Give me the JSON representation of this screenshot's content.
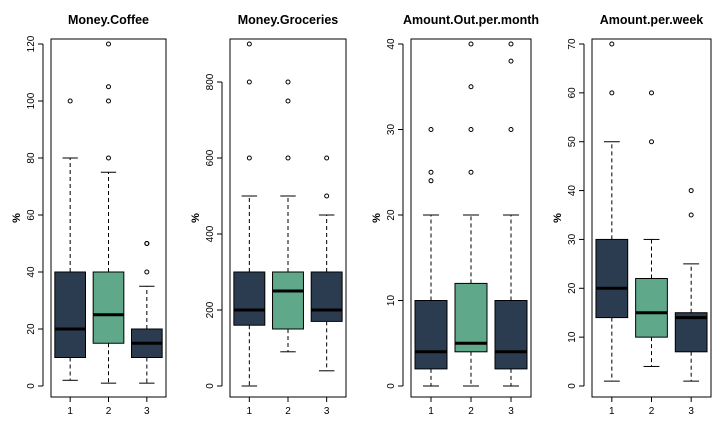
{
  "chart_data": [
    {
      "type": "boxplot",
      "title": "Money.Coffee",
      "ylabel": "%",
      "xlabel": "",
      "categories": [
        "1",
        "2",
        "3"
      ],
      "ylim": [
        0,
        120
      ],
      "yticks": [
        0,
        20,
        40,
        60,
        80,
        100,
        120
      ],
      "boxes": [
        {
          "group": "1",
          "min": 2,
          "q1": 10,
          "median": 20,
          "q3": 40,
          "max": 80,
          "outliers": [
            100
          ],
          "color": "#2b3c50"
        },
        {
          "group": "2",
          "min": 1,
          "q1": 15,
          "median": 25,
          "q3": 40,
          "max": 75,
          "outliers": [
            80,
            100,
            105,
            120
          ],
          "color": "#5fa98a"
        },
        {
          "group": "3",
          "min": 1,
          "q1": 10,
          "median": 15,
          "q3": 20,
          "max": 35,
          "outliers": [
            40,
            50,
            50
          ],
          "color": "#2b3c50"
        }
      ]
    },
    {
      "type": "boxplot",
      "title": "Money.Groceries",
      "ylabel": "%",
      "xlabel": "",
      "categories": [
        "1",
        "2",
        "3"
      ],
      "ylim": [
        0,
        900
      ],
      "yticks": [
        0,
        200,
        400,
        600,
        800
      ],
      "boxes": [
        {
          "group": "1",
          "min": 0,
          "q1": 160,
          "median": 200,
          "q3": 300,
          "max": 500,
          "outliers": [
            600,
            800,
            900
          ],
          "color": "#2b3c50"
        },
        {
          "group": "2",
          "min": 90,
          "q1": 150,
          "median": 250,
          "q3": 300,
          "max": 500,
          "outliers": [
            600,
            750,
            800
          ],
          "color": "#5fa98a"
        },
        {
          "group": "3",
          "min": 40,
          "q1": 170,
          "median": 200,
          "q3": 300,
          "max": 450,
          "outliers": [
            500,
            600
          ],
          "color": "#2b3c50"
        }
      ]
    },
    {
      "type": "boxplot",
      "title": "Amount.Out.per.month",
      "ylabel": "%",
      "xlabel": "",
      "categories": [
        "1",
        "2",
        "3"
      ],
      "ylim": [
        0,
        40
      ],
      "yticks": [
        0,
        10,
        20,
        30,
        40
      ],
      "boxes": [
        {
          "group": "1",
          "min": 0,
          "q1": 2,
          "median": 4,
          "q3": 10,
          "max": 20,
          "outliers": [
            24,
            25,
            30
          ],
          "color": "#2b3c50"
        },
        {
          "group": "2",
          "min": 0,
          "q1": 4,
          "median": 5,
          "q3": 12,
          "max": 20,
          "outliers": [
            25,
            30,
            35,
            40
          ],
          "color": "#5fa98a"
        },
        {
          "group": "3",
          "min": 0,
          "q1": 2,
          "median": 4,
          "q3": 10,
          "max": 20,
          "outliers": [
            30,
            38,
            40
          ],
          "color": "#2b3c50"
        }
      ]
    },
    {
      "type": "boxplot",
      "title": "Amount.per.week",
      "ylabel": "%",
      "xlabel": "",
      "categories": [
        "1",
        "2",
        "3"
      ],
      "ylim": [
        0,
        70
      ],
      "yticks": [
        0,
        10,
        20,
        30,
        40,
        50,
        60,
        70
      ],
      "boxes": [
        {
          "group": "1",
          "min": 1,
          "q1": 14,
          "median": 20,
          "q3": 30,
          "max": 50,
          "outliers": [
            60,
            70
          ],
          "color": "#2b3c50"
        },
        {
          "group": "2",
          "min": 4,
          "q1": 10,
          "median": 15,
          "q3": 22,
          "max": 30,
          "outliers": [
            50,
            60
          ],
          "color": "#5fa98a"
        },
        {
          "group": "3",
          "min": 1,
          "q1": 7,
          "median": 14,
          "q3": 15,
          "max": 25,
          "outliers": [
            35,
            40
          ],
          "color": "#2b3c50"
        }
      ]
    }
  ]
}
